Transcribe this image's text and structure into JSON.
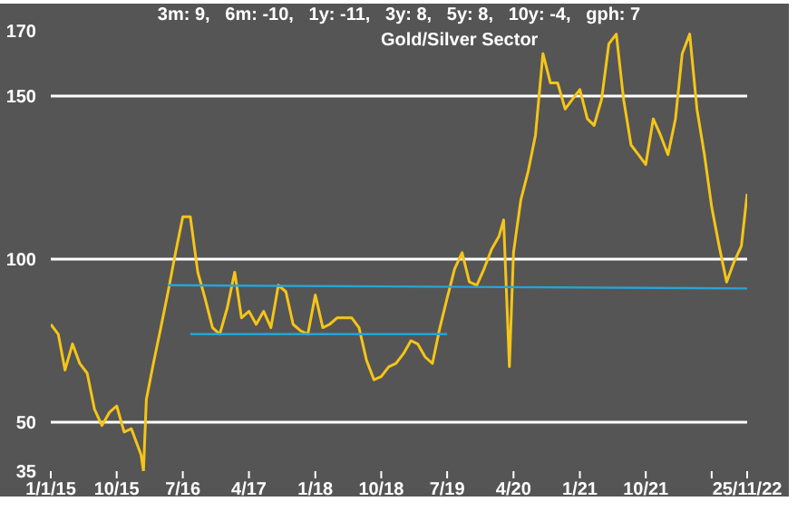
{
  "chart_data": {
    "type": "line",
    "title": "3m: 9,   6m: -10,   1y: -11,   3y: 8,   5y: 8,   10y: -4,   gph: 7",
    "subtitle": "Gold/Silver Sector",
    "series": [
      {
        "color": "#f5c518",
        "x": [
          "2015-01-01",
          "2015-02-01",
          "2015-03-01",
          "2015-04-01",
          "2015-05-01",
          "2015-06-01",
          "2015-07-01",
          "2015-08-01",
          "2015-09-01",
          "2015-10-01",
          "2015-11-01",
          "2015-12-01",
          "2016-01-10",
          "2016-01-20",
          "2016-02-01",
          "2016-03-01",
          "2016-04-01",
          "2016-05-01",
          "2016-06-01",
          "2016-07-01",
          "2016-08-01",
          "2016-09-01",
          "2016-10-01",
          "2016-11-01",
          "2016-12-01",
          "2017-01-01",
          "2017-02-01",
          "2017-03-01",
          "2017-04-01",
          "2017-05-01",
          "2017-06-01",
          "2017-07-01",
          "2017-08-01",
          "2017-09-01",
          "2017-10-01",
          "2017-11-01",
          "2017-12-01",
          "2018-01-01",
          "2018-02-01",
          "2018-03-01",
          "2018-04-01",
          "2018-05-01",
          "2018-06-01",
          "2018-07-01",
          "2018-08-01",
          "2018-09-01",
          "2018-10-01",
          "2018-11-01",
          "2018-12-01",
          "2019-01-01",
          "2019-02-01",
          "2019-03-01",
          "2019-04-01",
          "2019-05-01",
          "2019-06-01",
          "2019-07-01",
          "2019-08-01",
          "2019-09-01",
          "2019-10-01",
          "2019-11-01",
          "2019-12-01",
          "2020-01-01",
          "2020-02-01",
          "2020-02-20",
          "2020-03-15",
          "2020-04-01",
          "2020-05-01",
          "2020-06-01",
          "2020-07-01",
          "2020-08-01",
          "2020-09-01",
          "2020-10-01",
          "2020-11-01",
          "2020-12-01",
          "2021-01-01",
          "2021-02-01",
          "2021-03-01",
          "2021-04-01",
          "2021-05-01",
          "2021-06-01",
          "2021-07-01",
          "2021-08-01",
          "2021-09-01",
          "2021-10-01",
          "2021-11-01",
          "2021-12-01",
          "2022-01-01",
          "2022-02-01",
          "2022-03-01",
          "2022-04-01",
          "2022-05-01",
          "2022-06-01",
          "2022-07-01",
          "2022-08-01",
          "2022-09-01",
          "2022-10-01",
          "2022-11-01",
          "2022-11-25"
        ],
        "values": [
          80,
          77,
          66,
          74,
          68,
          65,
          54,
          49,
          53,
          55,
          47,
          48,
          40,
          35,
          57,
          68,
          79,
          90,
          102,
          113,
          113,
          96,
          88,
          79,
          77,
          85,
          96,
          82,
          84,
          80,
          84,
          79,
          92,
          90,
          80,
          78,
          77,
          89,
          79,
          80,
          82,
          82,
          82,
          79,
          69,
          63,
          64,
          67,
          68,
          71,
          75,
          74,
          70,
          68,
          79,
          88,
          97,
          102,
          93,
          92,
          97,
          103,
          107,
          112,
          67,
          102,
          118,
          127,
          138,
          163,
          154,
          154,
          146,
          149,
          152,
          143,
          141,
          149,
          166,
          169,
          149,
          135,
          132,
          129,
          143,
          138,
          132,
          143,
          163,
          169,
          146,
          132,
          116,
          104,
          93,
          99,
          104,
          120
        ]
      },
      {
        "color": "#29a3d6",
        "x": [
          "2016-05-01",
          "2022-11-25"
        ],
        "values": [
          92,
          91
        ]
      },
      {
        "color": "#29a3d6",
        "x": [
          "2016-08-01",
          "2019-07-01"
        ],
        "values": [
          77,
          77
        ]
      }
    ],
    "xlim": [
      "2015-01-01",
      "2022-11-25"
    ],
    "xticks": [
      {
        "value": "2015-01-01",
        "label": "1/1/15"
      },
      {
        "value": "2015-10-01",
        "label": "10/15"
      },
      {
        "value": "2016-07-01",
        "label": "7/16"
      },
      {
        "value": "2017-04-01",
        "label": "4/17"
      },
      {
        "value": "2018-01-01",
        "label": "1/18"
      },
      {
        "value": "2018-10-01",
        "label": "10/18"
      },
      {
        "value": "2019-07-01",
        "label": "7/19"
      },
      {
        "value": "2020-04-01",
        "label": "4/20"
      },
      {
        "value": "2021-01-01",
        "label": "1/21"
      },
      {
        "value": "2021-10-01",
        "label": "10/21"
      },
      {
        "value": "2022-07-01",
        "label": null
      },
      {
        "value": "2022-11-25",
        "label": "25/11/22"
      }
    ],
    "ylim": [
      35,
      170
    ],
    "yticks": [
      35,
      50,
      100,
      150,
      170
    ],
    "ref_lines": [
      {
        "axis": "y",
        "value": 50,
        "color": "#ffffff"
      },
      {
        "axis": "y",
        "value": 100,
        "color": "#ffffff"
      },
      {
        "axis": "y",
        "value": 150,
        "color": "#ffffff"
      }
    ],
    "legend": false,
    "grid": false,
    "marker": "none",
    "line_style": "solid"
  }
}
